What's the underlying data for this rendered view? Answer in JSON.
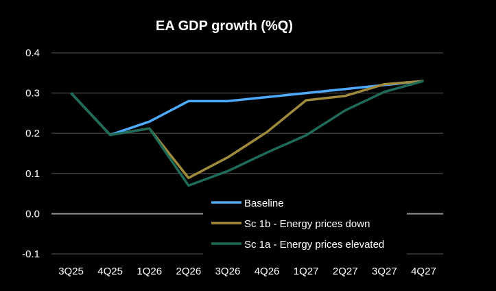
{
  "chart_data": {
    "type": "line",
    "title": "EA GDP growth (%Q)",
    "xlabel": "",
    "ylabel": "",
    "categories": [
      "3Q25",
      "4Q25",
      "1Q26",
      "2Q26",
      "3Q26",
      "4Q26",
      "1Q27",
      "2Q27",
      "3Q27",
      "4Q27"
    ],
    "ylim": [
      -0.1,
      0.4
    ],
    "yticks": [
      -0.1,
      0.0,
      0.1,
      0.2,
      0.3,
      0.4
    ],
    "ytick_labels": [
      "-0.1",
      "0.0",
      "0.1",
      "0.2",
      "0.3",
      "0.4"
    ],
    "grid": true,
    "legend_position": "bottom-center",
    "series": [
      {
        "name": "Baseline",
        "color": "#4DAAFF",
        "values": [
          0.3,
          0.196,
          0.229,
          0.28,
          0.28,
          0.29,
          0.3,
          0.31,
          0.32,
          0.33
        ]
      },
      {
        "name": "Sc 1b - Energy prices down",
        "color": "#A08A3C",
        "values": [
          0.3,
          0.196,
          0.212,
          0.089,
          0.14,
          0.203,
          0.282,
          0.293,
          0.322,
          0.33
        ]
      },
      {
        "name": "Sc 1a - Energy prices elevated",
        "color": "#1F6B5A",
        "values": [
          0.3,
          0.196,
          0.212,
          0.07,
          0.106,
          0.152,
          0.195,
          0.257,
          0.303,
          0.33
        ]
      }
    ]
  }
}
